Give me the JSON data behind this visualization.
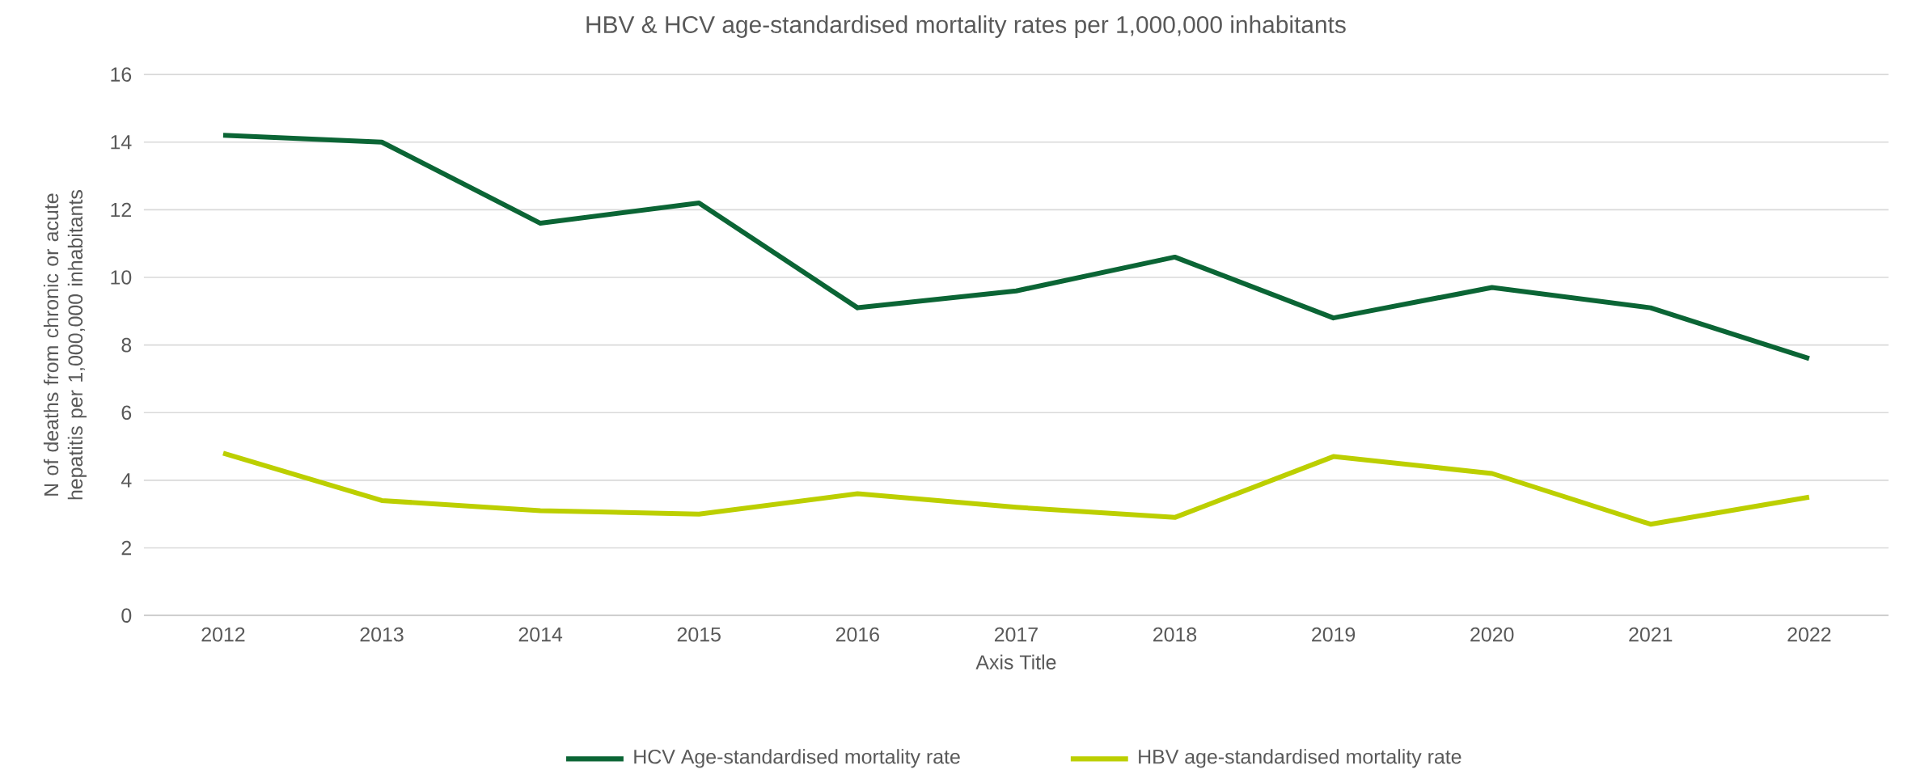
{
  "chart_data": {
    "type": "line",
    "title": "HBV & HCV age-standardised mortality rates per 1,000,000 inhabitants",
    "xlabel": "Axis Title",
    "ylabel": "N of deaths from chronic or acute hepatitis per 1,000,000 inhabitants",
    "categories": [
      "2012",
      "2013",
      "2014",
      "2015",
      "2016",
      "2017",
      "2018",
      "2019",
      "2020",
      "2021",
      "2022"
    ],
    "series": [
      {
        "name": "HCV Age-standardised mortality rate",
        "color": "#0b6535",
        "values": [
          14.2,
          14.0,
          11.6,
          12.2,
          9.1,
          9.6,
          10.6,
          8.8,
          9.7,
          9.1,
          7.6
        ]
      },
      {
        "name": "HBV age-standardised mortality rate",
        "color": "#bccf00",
        "values": [
          4.8,
          3.4,
          3.1,
          3.0,
          3.6,
          3.2,
          2.9,
          4.7,
          4.2,
          2.7,
          3.5
        ]
      }
    ],
    "ylim": [
      0,
      16
    ],
    "yticks": [
      0,
      2,
      4,
      6,
      8,
      10,
      12,
      14,
      16
    ],
    "grid": "y",
    "legend": "bottom",
    "marker": "none",
    "line_style": "solid"
  }
}
